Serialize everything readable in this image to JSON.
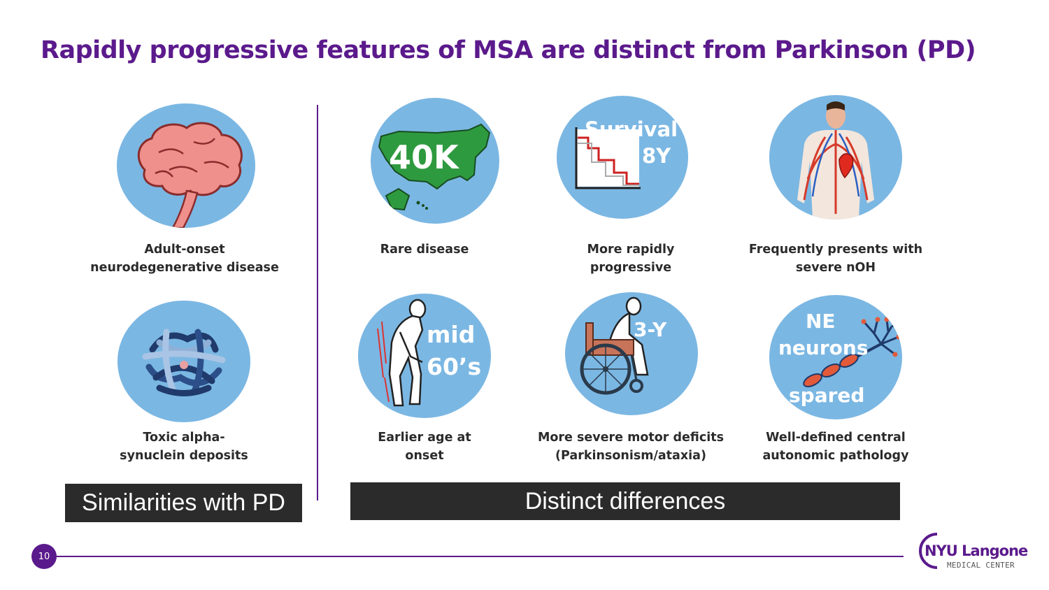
{
  "slide": {
    "title": "Rapidly progressive features of MSA are distinct from Parkinson (PD)",
    "page_number": "10"
  },
  "colors": {
    "title_purple": "#5b1a8c",
    "circle_blue": "#7bb7e3",
    "banner_dark": "#2b2b2b"
  },
  "similarities": {
    "banner": "Similarities with PD",
    "items": [
      {
        "icon": "brain-icon",
        "caption_line1": "Adult-onset",
        "caption_line2": "neurodegenerative disease"
      },
      {
        "icon": "protein-aggregate-icon",
        "caption_line1": "Toxic alpha-",
        "caption_line2": "synuclein deposits"
      }
    ]
  },
  "differences": {
    "banner": "Distinct differences",
    "items": [
      {
        "icon": "us-map-icon",
        "overlay_text": "40K",
        "caption_line1": "Rare disease",
        "caption_line2": ""
      },
      {
        "icon": "survival-curve-icon",
        "overlay_line1": "Survival",
        "overlay_line2": "8Y",
        "caption_line1": "More rapidly",
        "caption_line2": "progressive"
      },
      {
        "icon": "cardiovascular-body-icon",
        "caption_line1": "Frequently presents with",
        "caption_line2": "severe nOH"
      },
      {
        "icon": "stooped-person-icon",
        "overlay_line1": "mid",
        "overlay_line2": "60’s",
        "caption_line1": "Earlier age at",
        "caption_line2": "onset"
      },
      {
        "icon": "wheelchair-icon",
        "overlay_text": "3-Y",
        "caption_line1": "More severe motor deficits",
        "caption_line2": "(Parkinsonism/ataxia)"
      },
      {
        "icon": "neuron-icon",
        "overlay_line1": "NE",
        "overlay_line2": "neurons",
        "overlay_line3": "spared",
        "caption_line1": "Well-defined central",
        "caption_line2": "autonomic pathology"
      }
    ]
  },
  "logo": {
    "brand": "NYU Langone",
    "subtitle": "MEDICAL CENTER"
  }
}
